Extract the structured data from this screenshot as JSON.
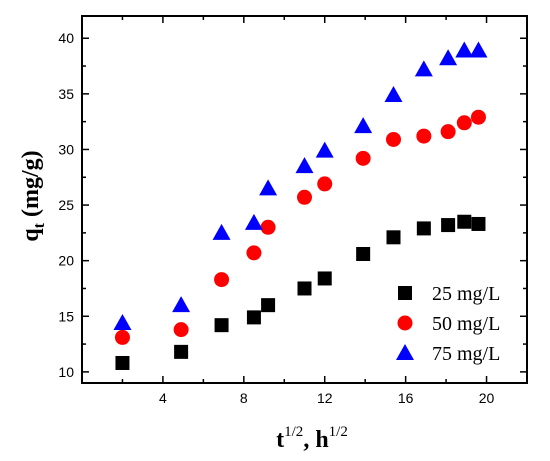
{
  "chart_data": {
    "type": "scatter",
    "x_axis": {
      "label_main": "t",
      "label_sup1": "1/2",
      "label_sep": ", h",
      "label_sup2": "1/2",
      "range": [
        0,
        22
      ],
      "ticks": [
        4,
        8,
        12,
        16,
        20
      ]
    },
    "y_axis": {
      "label_main": "q",
      "label_sub": "t",
      "label_unit": " (mg/g)",
      "range": [
        9,
        42
      ],
      "ticks": [
        10,
        15,
        20,
        25,
        30,
        35,
        40
      ]
    },
    "legend_position": "bottom-right",
    "series": [
      {
        "name": "25 mg/L",
        "marker": "square",
        "color": "#000000",
        "x": [
          2.0,
          4.9,
          6.9,
          8.5,
          9.2,
          11.0,
          12.0,
          13.9,
          15.4,
          16.9,
          18.1,
          18.9,
          19.6
        ],
        "y": [
          10.8,
          11.8,
          14.2,
          14.9,
          16.0,
          17.5,
          18.4,
          20.6,
          22.1,
          22.9,
          23.2,
          23.5,
          23.3
        ]
      },
      {
        "name": "50 mg/L",
        "marker": "circle",
        "color": "#ff0000",
        "x": [
          2.0,
          4.9,
          6.9,
          8.5,
          9.2,
          11.0,
          12.0,
          13.9,
          15.4,
          16.9,
          18.1,
          18.9,
          19.6
        ],
        "y": [
          13.1,
          13.8,
          18.3,
          20.7,
          23.0,
          25.7,
          26.9,
          29.2,
          30.9,
          31.2,
          31.6,
          32.4,
          32.9
        ]
      },
      {
        "name": "75 mg/L",
        "marker": "triangle",
        "color": "#0000ff",
        "x": [
          2.0,
          4.9,
          6.9,
          8.5,
          9.2,
          11.0,
          12.0,
          13.9,
          15.4,
          16.9,
          18.1,
          18.9,
          19.6
        ],
        "y": [
          14.4,
          16.0,
          22.5,
          23.4,
          26.5,
          28.5,
          29.9,
          32.1,
          34.9,
          37.2,
          38.2,
          38.9,
          38.9
        ]
      }
    ]
  }
}
